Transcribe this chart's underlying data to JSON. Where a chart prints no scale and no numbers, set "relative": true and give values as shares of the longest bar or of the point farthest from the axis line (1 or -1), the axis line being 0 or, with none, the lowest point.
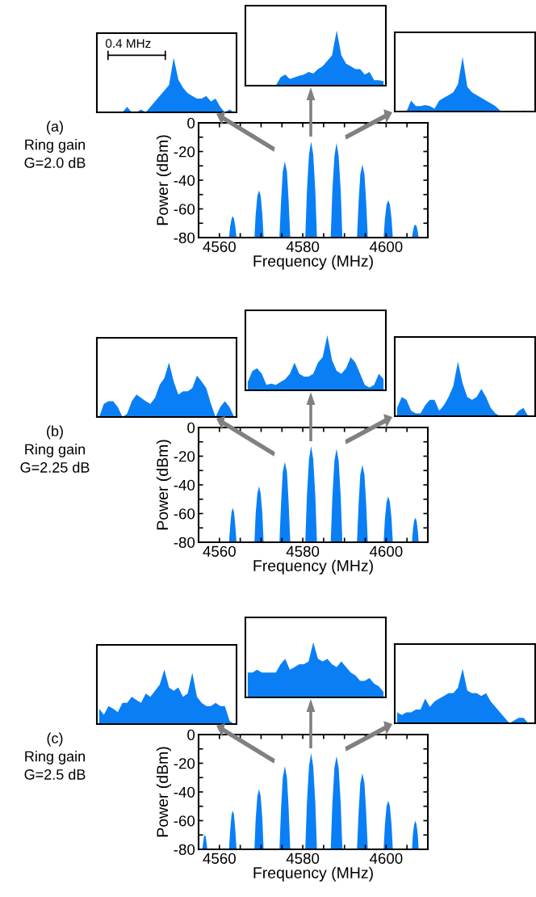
{
  "chart_data": [
    {
      "type": "area",
      "relative": true,
      "color": "#0a7ff5",
      "categories": [
        null,
        null,
        null,
        null,
        null,
        null,
        null,
        null,
        null,
        null,
        null,
        null,
        null,
        null,
        null,
        null,
        null,
        null,
        null,
        null,
        null,
        null,
        null,
        null,
        null,
        null,
        null,
        null,
        null,
        null
      ],
      "values": [
        0,
        0,
        0,
        0,
        0,
        0,
        0.1,
        0,
        0,
        0.05,
        0,
        0.1,
        0.2,
        0.3,
        0.4,
        0.5,
        1.0,
        0.6,
        0.45,
        0.35,
        0.3,
        0.25,
        0.25,
        0.3,
        0.2,
        0.25,
        0.1,
        0,
        0.05,
        0
      ],
      "annotations": [
        "0.4 MHz"
      ]
    },
    {
      "type": "area",
      "relative": true,
      "color": "#0a7ff5",
      "categories": [
        null,
        null,
        null,
        null,
        null,
        null,
        null,
        null,
        null,
        null,
        null,
        null,
        null,
        null,
        null,
        null,
        null,
        null,
        null,
        null,
        null,
        null,
        null,
        null,
        null,
        null,
        null,
        null,
        null,
        null
      ],
      "values": [
        0,
        0,
        0,
        0,
        0,
        0,
        0,
        0.15,
        0.2,
        0.12,
        0.15,
        0.18,
        0.2,
        0.25,
        0.22,
        0.3,
        0.35,
        0.45,
        0.55,
        1.0,
        0.55,
        0.4,
        0.35,
        0.3,
        0.3,
        0.2,
        0.25,
        0.1,
        0.1,
        0.08
      ]
    },
    {
      "type": "area",
      "relative": true,
      "color": "#0a7ff5",
      "categories": [
        null,
        null,
        null,
        null,
        null,
        null,
        null,
        null,
        null,
        null,
        null,
        null,
        null,
        null,
        null,
        null,
        null,
        null,
        null,
        null,
        null,
        null,
        null,
        null,
        null,
        null,
        null,
        null,
        null,
        null
      ],
      "values": [
        0,
        0,
        0,
        0.2,
        0.1,
        0.1,
        0.12,
        0.1,
        0.05,
        0.2,
        0.25,
        0.3,
        0.35,
        0.5,
        1.0,
        0.45,
        0.35,
        0.3,
        0.25,
        0.2,
        0.15,
        0.1,
        0.02,
        0,
        0,
        0,
        0,
        0.02,
        0,
        0
      ]
    },
    {
      "type": "area",
      "color": "#0a7ff5",
      "xlabel": "Frequency (MHz)",
      "ylabel": "Power (dBm)",
      "xlim": [
        4555,
        4610
      ],
      "ylim": [
        -80,
        0
      ],
      "xticks": [
        4560,
        {
          "value": 4565,
          "label": null
        },
        {
          "value": 4570,
          "label": null
        },
        {
          "value": 4575,
          "label": null
        },
        4580,
        {
          "value": 4585,
          "label": null
        },
        {
          "value": 4590,
          "label": null
        },
        {
          "value": 4595,
          "label": null
        },
        4600,
        {
          "value": 4605,
          "label": null
        }
      ],
      "yticks": [
        -80,
        {
          "value": -70,
          "label": null
        },
        -60,
        {
          "value": -50,
          "label": null
        },
        -40,
        {
          "value": -30,
          "label": null
        },
        -20,
        {
          "value": -10,
          "label": null
        },
        0
      ],
      "annotations": [
        "(a)",
        "Ring gain",
        "G=2.0 dB"
      ],
      "x": [
        4562.3,
        4562.6,
        4562.9,
        4563.2,
        4563.5,
        4563.8,
        4564.1,
        4568.4,
        4568.7,
        4569.1,
        4569.5,
        4569.9,
        4570.3,
        4570.6,
        4574.4,
        4574.8,
        4575.2,
        4575.7,
        4576.2,
        4576.6,
        4577.0,
        4580.6,
        4581.0,
        4581.5,
        4582.0,
        4582.5,
        4583.0,
        4583.4,
        4586.7,
        4587.1,
        4587.6,
        4588.1,
        4588.6,
        4589.1,
        4589.5,
        4593.0,
        4593.4,
        4593.8,
        4594.3,
        4594.8,
        4595.2,
        4595.6,
        4599.4,
        4599.7,
        4600.1,
        4600.5,
        4600.9,
        4601.3,
        4601.6,
        4606.2,
        4606.4,
        4606.7,
        4607.0,
        4607.3,
        4607.6,
        4607.8
      ],
      "values": [
        -80,
        -72,
        -67,
        -65,
        -67,
        -72,
        -80,
        -80,
        -64,
        -51,
        -47,
        -51,
        -64,
        -80,
        -80,
        -54,
        -34,
        -27,
        -34,
        -54,
        -80,
        -80,
        -47,
        -22,
        -13,
        -22,
        -47,
        -80,
        -80,
        -47,
        -23,
        -14,
        -23,
        -47,
        -80,
        -80,
        -55,
        -36,
        -29,
        -36,
        -55,
        -80,
        -80,
        -67,
        -57,
        -54,
        -57,
        -67,
        -80,
        -80,
        -76,
        -72,
        -71,
        -72,
        -76,
        -80
      ]
    },
    {
      "type": "area",
      "relative": true,
      "color": "#0a7ff5",
      "categories": [
        null,
        null,
        null,
        null,
        null,
        null,
        null,
        null,
        null,
        null,
        null,
        null,
        null,
        null,
        null,
        null,
        null,
        null,
        null,
        null,
        null,
        null,
        null,
        null,
        null,
        null,
        null,
        null,
        null,
        null
      ],
      "values": [
        0,
        0.24,
        0.29,
        0.29,
        0.18,
        0,
        0.06,
        0.29,
        0.41,
        0.35,
        0.29,
        0.24,
        0.35,
        0.59,
        0.71,
        1.0,
        0.65,
        0.41,
        0.47,
        0.47,
        0.53,
        0.76,
        0.65,
        0.53,
        0.24,
        0,
        0.18,
        0.29,
        0.18,
        0
      ]
    },
    {
      "type": "area",
      "relative": true,
      "color": "#0a7ff5",
      "categories": [
        null,
        null,
        null,
        null,
        null,
        null,
        null,
        null,
        null,
        null,
        null,
        null,
        null,
        null,
        null,
        null,
        null,
        null,
        null,
        null,
        null,
        null,
        null,
        null,
        null,
        null,
        null,
        null,
        null,
        null
      ],
      "values": [
        0.15,
        0.35,
        0.4,
        0.3,
        0.1,
        0.12,
        0.1,
        0.15,
        0.2,
        0.3,
        0.5,
        0.3,
        0.25,
        0.25,
        0.3,
        0.5,
        0.6,
        1.0,
        0.55,
        0.35,
        0.3,
        0.4,
        0.6,
        0.5,
        0.3,
        0.1,
        0.05,
        0.1,
        0.3,
        0.2
      ]
    },
    {
      "type": "area",
      "relative": true,
      "color": "#0a7ff5",
      "categories": [
        null,
        null,
        null,
        null,
        null,
        null,
        null,
        null,
        null,
        null,
        null,
        null,
        null,
        null,
        null,
        null,
        null,
        null,
        null,
        null,
        null,
        null,
        null,
        null,
        null,
        null,
        null,
        null,
        null,
        null
      ],
      "values": [
        0.15,
        0.35,
        0.3,
        0.1,
        0.05,
        0.05,
        0.2,
        0.3,
        0.3,
        0.1,
        0.2,
        0.35,
        0.55,
        1.0,
        0.6,
        0.35,
        0.3,
        0.35,
        0.5,
        0.35,
        0.15,
        0.05,
        0,
        0,
        0,
        0,
        0.1,
        0.15,
        0,
        0
      ]
    },
    {
      "type": "area",
      "color": "#0a7ff5",
      "xlabel": "Frequency (MHz)",
      "ylabel": "Power (dBm)",
      "xlim": [
        4555,
        4610
      ],
      "ylim": [
        -80,
        0
      ],
      "xticks": [
        4560,
        {
          "value": 4565,
          "label": null
        },
        {
          "value": 4570,
          "label": null
        },
        {
          "value": 4575,
          "label": null
        },
        4580,
        {
          "value": 4585,
          "label": null
        },
        {
          "value": 4590,
          "label": null
        },
        {
          "value": 4595,
          "label": null
        },
        4600,
        {
          "value": 4605,
          "label": null
        }
      ],
      "yticks": [
        -80,
        {
          "value": -70,
          "label": null
        },
        -60,
        {
          "value": -50,
          "label": null
        },
        -40,
        {
          "value": -30,
          "label": null
        },
        -20,
        {
          "value": -10,
          "label": null
        },
        0
      ],
      "annotations": [
        "(b)",
        "Ring gain",
        "G=2.25 dB"
      ],
      "x": [
        4562.3,
        4562.6,
        4562.9,
        4563.2,
        4563.5,
        4563.8,
        4564.1,
        4568.4,
        4568.7,
        4569.1,
        4569.5,
        4569.9,
        4570.3,
        4570.6,
        4574.4,
        4574.8,
        4575.2,
        4575.7,
        4576.2,
        4576.6,
        4577.0,
        4580.6,
        4581.0,
        4581.5,
        4582.0,
        4582.5,
        4583.0,
        4583.4,
        4586.7,
        4587.1,
        4587.6,
        4588.1,
        4588.6,
        4589.1,
        4589.5,
        4593.0,
        4593.4,
        4593.8,
        4594.3,
        4594.8,
        4595.2,
        4595.6,
        4599.4,
        4599.7,
        4600.1,
        4600.5,
        4600.9,
        4601.3,
        4601.6,
        4606.2,
        4606.4,
        4606.7,
        4607.0,
        4607.3,
        4607.6,
        4607.8
      ],
      "values": [
        -80,
        -68,
        -59,
        -56,
        -59,
        -68,
        -80,
        -80,
        -60,
        -46,
        -41,
        -46,
        -60,
        -80,
        -80,
        -52,
        -31,
        -24,
        -31,
        -52,
        -80,
        -80,
        -47,
        -22,
        -13,
        -22,
        -47,
        -80,
        -80,
        -48,
        -23,
        -15,
        -23,
        -48,
        -80,
        -80,
        -53,
        -33,
        -26,
        -33,
        -53,
        -80,
        -80,
        -64,
        -52,
        -48,
        -52,
        -64,
        -80,
        -80,
        -72,
        -65,
        -63,
        -65,
        -72,
        -80
      ]
    },
    {
      "type": "area",
      "relative": true,
      "color": "#0a7ff5",
      "categories": [
        null,
        null,
        null,
        null,
        null,
        null,
        null,
        null,
        null,
        null,
        null,
        null,
        null,
        null,
        null,
        null,
        null,
        null,
        null,
        null,
        null,
        null,
        null,
        null,
        null,
        null,
        null,
        null,
        null,
        null
      ],
      "values": [
        0.28,
        0.17,
        0.33,
        0.28,
        0.22,
        0.39,
        0.39,
        0.5,
        0.44,
        0.39,
        0.56,
        0.5,
        0.61,
        0.72,
        1.0,
        0.67,
        0.61,
        0.67,
        0.5,
        0.56,
        0.94,
        0.5,
        0.39,
        0.33,
        0.33,
        0.39,
        0.33,
        0.33,
        0.06,
        0
      ]
    },
    {
      "type": "area",
      "relative": true,
      "color": "#0a7ff5",
      "categories": [
        null,
        null,
        null,
        null,
        null,
        null,
        null,
        null,
        null,
        null,
        null,
        null,
        null,
        null,
        null,
        null,
        null,
        null,
        null,
        null,
        null,
        null,
        null,
        null,
        null,
        null,
        null,
        null,
        null,
        null
      ],
      "values": [
        0.45,
        0.45,
        0.5,
        0.45,
        0.45,
        0.45,
        0.45,
        0.6,
        0.7,
        0.5,
        0.55,
        0.6,
        0.6,
        0.65,
        1.0,
        0.7,
        0.65,
        0.7,
        0.6,
        0.55,
        0.65,
        0.55,
        0.45,
        0.4,
        0.3,
        0.3,
        0.35,
        0.25,
        0.2,
        0.1
      ]
    },
    {
      "type": "area",
      "relative": true,
      "color": "#0a7ff5",
      "categories": [
        null,
        null,
        null,
        null,
        null,
        null,
        null,
        null,
        null,
        null,
        null,
        null,
        null,
        null,
        null,
        null,
        null,
        null,
        null,
        null,
        null,
        null,
        null,
        null,
        null,
        null,
        null,
        null,
        null,
        null
      ],
      "values": [
        0.2,
        0.15,
        0.2,
        0.2,
        0.25,
        0.25,
        0.45,
        0.3,
        0.4,
        0.45,
        0.5,
        0.55,
        0.55,
        0.65,
        1.0,
        0.6,
        0.55,
        0.55,
        0.5,
        0.55,
        0.4,
        0.3,
        0.2,
        0.1,
        0,
        0.05,
        0.1,
        0.1,
        0,
        0
      ]
    },
    {
      "type": "area",
      "color": "#0a7ff5",
      "xlabel": "Frequency (MHz)",
      "ylabel": "Power (dBm)",
      "xlim": [
        4555,
        4610
      ],
      "ylim": [
        -80,
        0
      ],
      "xticks": [
        4560,
        {
          "value": 4565,
          "label": null
        },
        {
          "value": 4570,
          "label": null
        },
        {
          "value": 4575,
          "label": null
        },
        4580,
        {
          "value": 4585,
          "label": null
        },
        {
          "value": 4590,
          "label": null
        },
        {
          "value": 4595,
          "label": null
        },
        4600,
        {
          "value": 4605,
          "label": null
        }
      ],
      "yticks": [
        -80,
        {
          "value": -70,
          "label": null
        },
        -60,
        {
          "value": -50,
          "label": null
        },
        -40,
        {
          "value": -30,
          "label": null
        },
        -20,
        {
          "value": -10,
          "label": null
        },
        0
      ],
      "annotations": [
        "(c)",
        "Ring gain",
        "G=2.5 dB"
      ],
      "x": [
        4555.9,
        4556.1,
        4556.3,
        4556.5,
        4556.7,
        4556.9,
        4557.1,
        4562.3,
        4562.6,
        4562.9,
        4563.2,
        4563.5,
        4563.8,
        4564.1,
        4568.4,
        4568.7,
        4569.1,
        4569.5,
        4569.9,
        4570.3,
        4570.6,
        4574.4,
        4574.8,
        4575.2,
        4575.7,
        4576.2,
        4576.6,
        4577.0,
        4580.6,
        4581.0,
        4581.5,
        4582.0,
        4582.5,
        4583.0,
        4583.4,
        4586.7,
        4587.1,
        4587.6,
        4588.1,
        4588.6,
        4589.1,
        4589.5,
        4593.0,
        4593.4,
        4593.8,
        4594.3,
        4594.8,
        4595.2,
        4595.6,
        4599.4,
        4599.7,
        4600.1,
        4600.5,
        4600.9,
        4601.3,
        4601.6,
        4606.2,
        4606.4,
        4606.7,
        4607.0,
        4607.3,
        4607.6,
        4607.8
      ],
      "values": [
        -80,
        -75,
        -71,
        -70,
        -71,
        -75,
        -80,
        -80,
        -66,
        -56,
        -53,
        -56,
        -66,
        -80,
        -80,
        -59,
        -43,
        -38,
        -43,
        -59,
        -80,
        -80,
        -51,
        -30,
        -22,
        -30,
        -51,
        -80,
        -80,
        -47,
        -22,
        -13,
        -22,
        -47,
        -80,
        -80,
        -48,
        -23,
        -15,
        -23,
        -48,
        -80,
        -80,
        -54,
        -34,
        -27,
        -34,
        -54,
        -80,
        -80,
        -63,
        -50,
        -46,
        -50,
        -63,
        -80,
        -80,
        -70,
        -63,
        -60,
        -63,
        -70,
        -80
      ]
    }
  ]
}
